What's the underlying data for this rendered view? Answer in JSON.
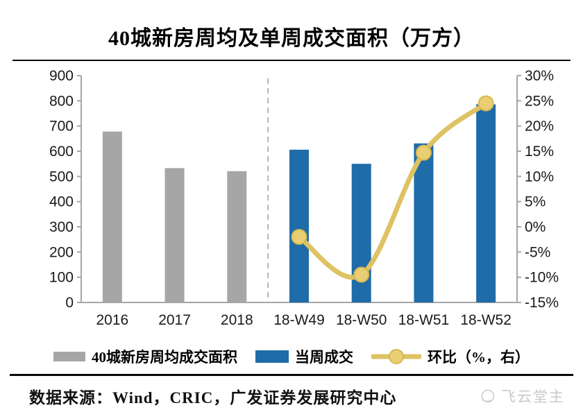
{
  "title": "40城新房周均及单周成交面积（万方）",
  "footer": {
    "source": "数据来源：Wind，CRIC，广发证券发展研究中心",
    "watermark": "飞云堂主"
  },
  "chart_data": {
    "type": "bar+line",
    "title": "40城新房周均及单周成交面积（万方）",
    "categories": [
      "2016",
      "2017",
      "2018",
      "18-W49",
      "18-W50",
      "18-W51",
      "18-W52"
    ],
    "series": [
      {
        "name": "40城新房周均成交面积",
        "type": "bar",
        "axis": "left",
        "color": "#a6a6a6",
        "values": [
          678,
          533,
          521,
          null,
          null,
          null,
          null
        ]
      },
      {
        "name": "当周成交",
        "type": "bar",
        "axis": "left",
        "color": "#1f6ca9",
        "values": [
          null,
          null,
          null,
          606,
          550,
          631,
          786
        ]
      },
      {
        "name": "环比（%，右）",
        "type": "line",
        "axis": "right",
        "color": "#dec263",
        "marker_fill": "#e9ce74",
        "marker_stroke": "#d6b84e",
        "values": [
          null,
          null,
          null,
          -2,
          -9.5,
          14.7,
          24.5
        ]
      }
    ],
    "left_axis": {
      "min": 0,
      "max": 900,
      "step": 100,
      "ticks": [
        "900",
        "800",
        "700",
        "600",
        "500",
        "400",
        "300",
        "200",
        "100",
        "0"
      ]
    },
    "right_axis": {
      "min": -15,
      "max": 30,
      "step": 5,
      "ticks": [
        "30%",
        "25%",
        "20%",
        "15%",
        "10%",
        "5%",
        "0%",
        "-5%",
        "-10%",
        "-15%"
      ]
    },
    "separator": {
      "after_category_index": 2,
      "style": "dashed",
      "color": "#b5b5b5"
    },
    "axis_color": "#a6a6a6",
    "label_color": "#1a1a1a",
    "grid": false,
    "legend_position": "bottom"
  }
}
